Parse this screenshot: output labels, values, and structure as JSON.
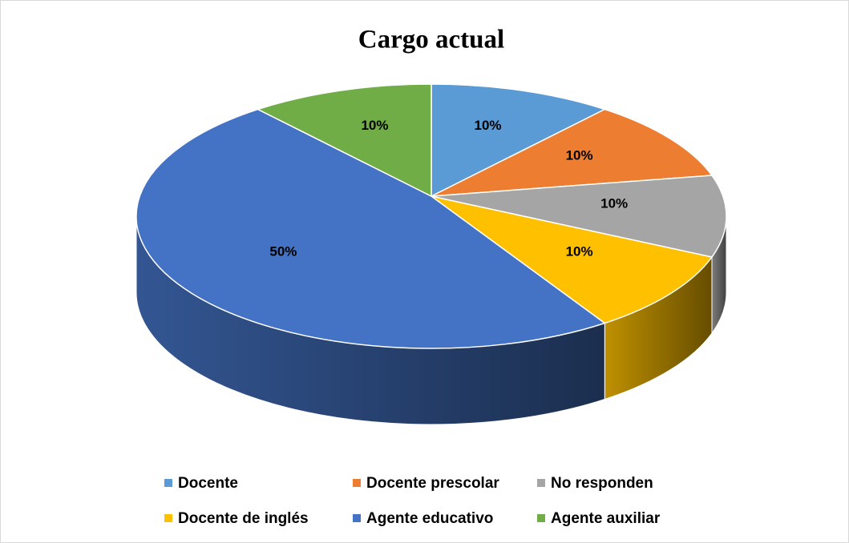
{
  "chart_data": {
    "type": "pie",
    "title": "Cargo actual",
    "categories": [
      "Docente",
      "Docente prescolar",
      "No responden",
      "Docente de inglés",
      "Agente educativo",
      "Agente auxiliar"
    ],
    "values": [
      10,
      10,
      10,
      10,
      50,
      10
    ],
    "value_labels": [
      "10%",
      "10%",
      "10%",
      "10%",
      "50%",
      "10%"
    ],
    "colors": [
      "#5b9bd5",
      "#ed7d31",
      "#a5a5a5",
      "#ffc000",
      "#4472c4",
      "#70ad47"
    ],
    "legend": "bottom"
  }
}
